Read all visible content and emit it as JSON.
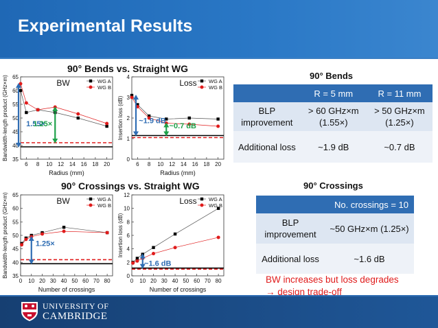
{
  "slide": {
    "title": "Experimental Results",
    "note_line1": "BW increases but loss degrades",
    "note_line2": "→ design trade-off",
    "university_line1": "UNIVERSITY OF",
    "university_line2": "CAMBRIDGE"
  },
  "bends": {
    "chart_title": "90° Bends vs. Straight WG",
    "section_title": "90° Bends",
    "table": {
      "col1": "R = 5 mm",
      "col2": "R = 11 mm",
      "row1_label": "BLP improvement",
      "row1_a": "> 60 GHz×m (1.55×)",
      "row1_b": "> 50 GHz×m (1.25×)",
      "row2_label": "Additional loss",
      "row2_a": "~1.9 dB",
      "row2_b": "~0.7 dB"
    }
  },
  "crossings": {
    "chart_title": "90° Crossings vs. Straight WG",
    "section_title": "90° Crossings",
    "table": {
      "header": "No. crossings = 10",
      "row1_label": "BLP improvement",
      "row1_value": "~50 GHz×m (1.25×)",
      "row2_label": "Additional loss",
      "row2_value": "~1.6 dB"
    }
  },
  "chart_data": [
    {
      "type": "line",
      "panel_label": "BW",
      "xlabel": "Radius (mm)",
      "ylabel": "Bandwidth-length product (GHz×m)",
      "xlim": [
        5,
        21
      ],
      "ylim": [
        35,
        65
      ],
      "xticks": [
        6,
        8,
        10,
        12,
        14,
        16,
        18,
        20
      ],
      "yticks": [
        35,
        40,
        45,
        50,
        55,
        60,
        65
      ],
      "baseline_black": 39.5,
      "baseline_red": 41,
      "annotations": [
        "1.55×",
        "1.25×"
      ],
      "series": [
        {
          "name": "WG A",
          "color": "#000000",
          "x": [
            5,
            6,
            8,
            11,
            15,
            20
          ],
          "y": [
            60,
            52,
            53,
            52,
            50,
            47
          ]
        },
        {
          "name": "WG B",
          "color": "#e01b1b",
          "x": [
            5,
            6,
            8,
            11,
            15,
            20
          ],
          "y": [
            62.5,
            55.5,
            53,
            54,
            51.5,
            48
          ]
        }
      ]
    },
    {
      "type": "line",
      "panel_label": "Loss",
      "xlabel": "Radius (mm)",
      "ylabel": "Insertion loss (dB)",
      "xlim": [
        5,
        21
      ],
      "ylim": [
        0,
        4
      ],
      "xticks": [
        6,
        8,
        10,
        12,
        14,
        16,
        18,
        20
      ],
      "yticks": [
        0,
        1,
        2,
        3,
        4
      ],
      "baseline_black": 1.15,
      "baseline_red": 1.05,
      "annotations": [
        "~1.9 dB",
        "~0.7 dB"
      ],
      "series": [
        {
          "name": "WG A",
          "color": "#000000",
          "x": [
            5,
            6,
            8,
            11,
            15,
            20
          ],
          "y": [
            3.1,
            2.65,
            2.1,
            1.95,
            2.0,
            1.95
          ]
        },
        {
          "name": "WG B",
          "color": "#e01b1b",
          "x": [
            5,
            6,
            8,
            11,
            15,
            20
          ],
          "y": [
            3.0,
            2.55,
            2.0,
            1.75,
            1.7,
            1.6
          ]
        }
      ]
    },
    {
      "type": "line",
      "panel_label": "BW",
      "xlabel": "Number of crossings",
      "ylabel": "Bandwidth-length product (GHz×m)",
      "xlim": [
        0,
        85
      ],
      "ylim": [
        35,
        65
      ],
      "xticks": [
        0,
        10,
        20,
        30,
        40,
        50,
        60,
        70,
        80
      ],
      "yticks": [
        35,
        40,
        45,
        50,
        55,
        60,
        65
      ],
      "baseline_black": 39.5,
      "baseline_red": 41,
      "annotations": [
        "1.25×"
      ],
      "series": [
        {
          "name": "WG A",
          "color": "#000000",
          "x": [
            1,
            5,
            10,
            20,
            40,
            80
          ],
          "y": [
            47,
            49,
            50,
            51,
            53,
            51
          ]
        },
        {
          "name": "WG B",
          "color": "#e01b1b",
          "x": [
            1,
            5,
            10,
            20,
            40,
            80
          ],
          "y": [
            46.5,
            48.5,
            49.5,
            50.5,
            51.5,
            51
          ]
        }
      ]
    },
    {
      "type": "line",
      "panel_label": "Loss",
      "xlabel": "Number of crossings",
      "ylabel": "Insertion loss (dB)",
      "xlim": [
        0,
        85
      ],
      "ylim": [
        0,
        12
      ],
      "xticks": [
        0,
        10,
        20,
        30,
        40,
        50,
        60,
        70,
        80
      ],
      "yticks": [
        0,
        2,
        4,
        6,
        8,
        10,
        12
      ],
      "baseline_black": 1.15,
      "baseline_red": 1.0,
      "annotations": [
        "~1.6 dB"
      ],
      "series": [
        {
          "name": "WG A",
          "color": "#000000",
          "x": [
            1,
            5,
            10,
            20,
            40,
            80
          ],
          "y": [
            2.0,
            2.6,
            3.2,
            4.2,
            6.2,
            10.0
          ]
        },
        {
          "name": "WG B",
          "color": "#e01b1b",
          "x": [
            1,
            5,
            10,
            20,
            40,
            80
          ],
          "y": [
            1.9,
            2.2,
            2.6,
            3.3,
            4.2,
            5.7
          ]
        }
      ]
    }
  ]
}
